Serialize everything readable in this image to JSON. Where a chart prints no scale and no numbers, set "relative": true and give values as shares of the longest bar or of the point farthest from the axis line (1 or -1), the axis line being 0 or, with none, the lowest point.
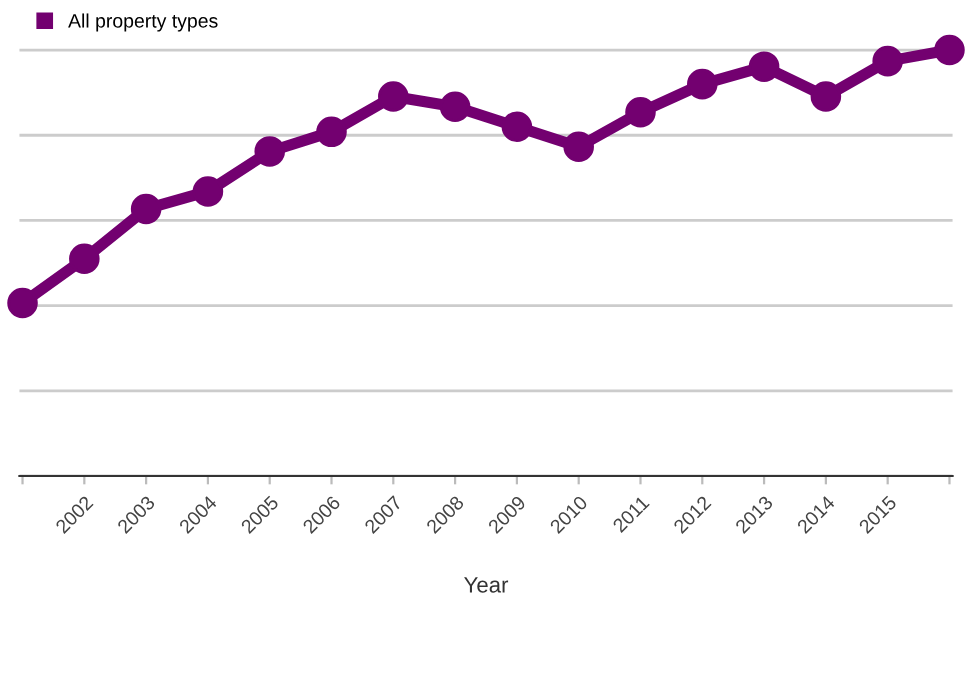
{
  "chart_data": {
    "type": "line",
    "xlabel": "Year",
    "relative": true,
    "categories": [
      null,
      "2002",
      "2003",
      "2004",
      "2005",
      "2006",
      "2007",
      "2008",
      "2009",
      "2010",
      "2011",
      "2012",
      "2013",
      "2014",
      "2015",
      null
    ],
    "series": [
      {
        "name": "All property types",
        "color": "#730070",
        "values": [
          0.406,
          0.51,
          0.627,
          0.668,
          0.762,
          0.808,
          0.891,
          0.867,
          0.82,
          0.773,
          0.854,
          0.92,
          0.961,
          0.891,
          0.974,
          1.0
        ]
      }
    ],
    "marker": "circle",
    "line_style": "solid",
    "grid": "y",
    "legend": "top left"
  }
}
